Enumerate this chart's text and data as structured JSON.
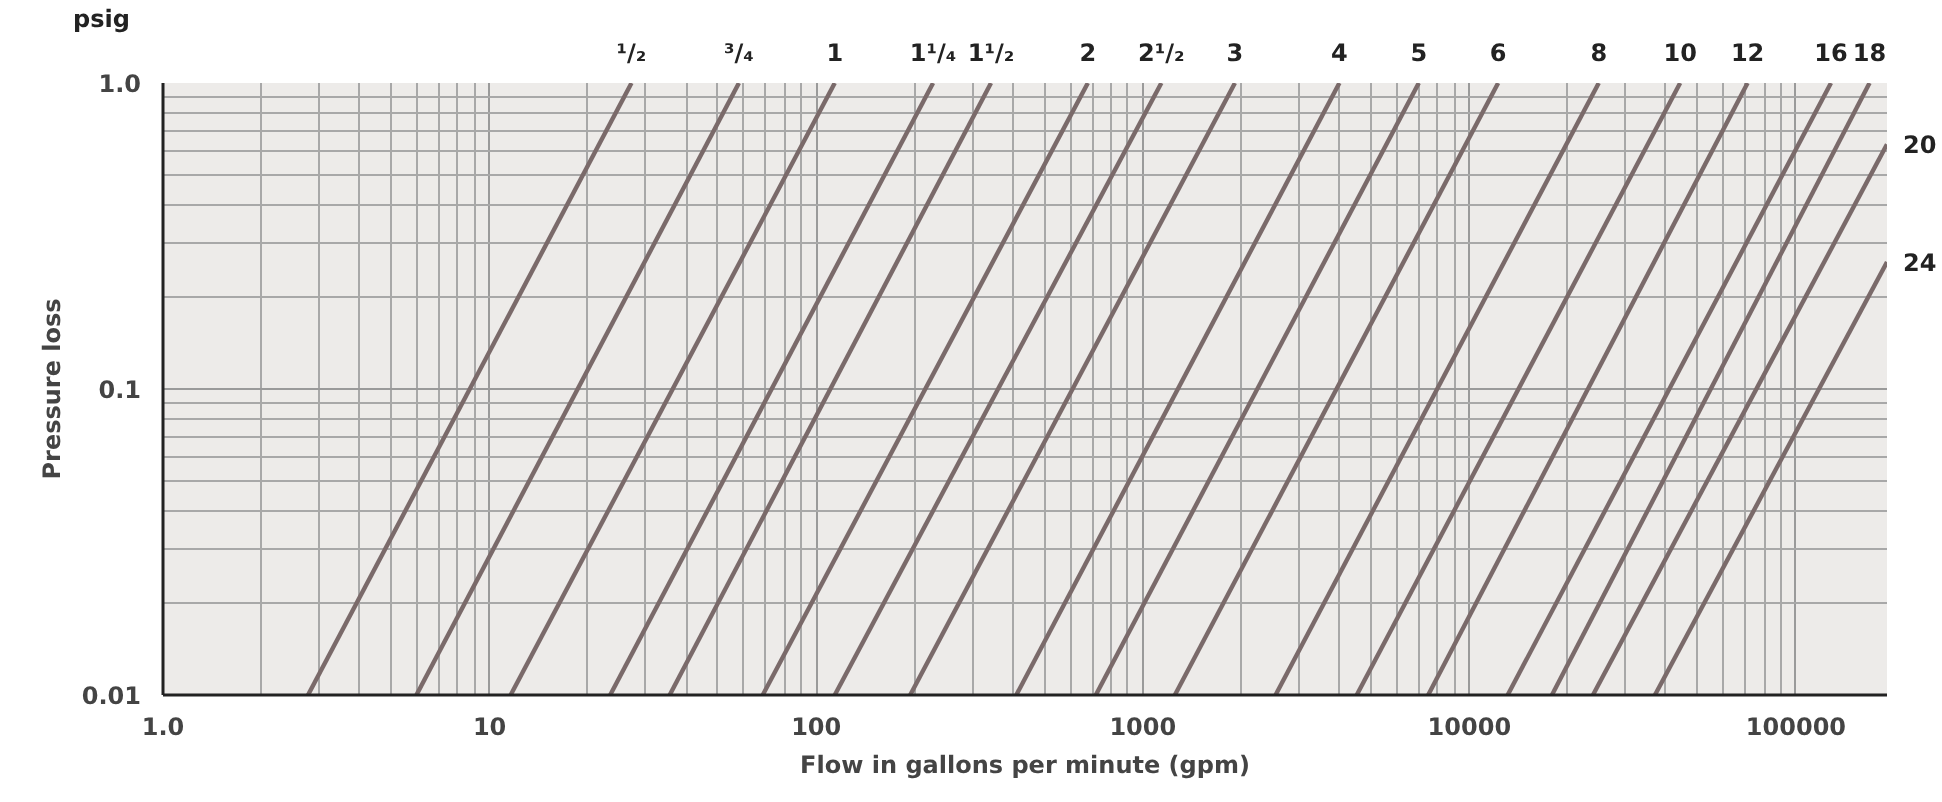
{
  "chart_data": {
    "type": "line",
    "xlabel": "Flow in gallons per minute (gpm)",
    "ylabel": "Pressure loss",
    "annotations": [
      "psig"
    ],
    "log": "xy",
    "grid": true,
    "marker": "none",
    "line_style": "solid",
    "xlim": [
      1,
      190000
    ],
    "ylim": [
      0.01,
      1
    ],
    "xticks": [
      {
        "value": 1,
        "label": "1.0"
      },
      10,
      100,
      1000,
      10000,
      100000
    ],
    "yticks": [
      0.01,
      0.1,
      {
        "value": 1,
        "label": "1.0"
      }
    ],
    "series": [
      {
        "name": "¹/₂",
        "color": "#7a6a6a",
        "x": [
          2.78,
          27.2
        ],
        "values": [
          0.01,
          1
        ]
      },
      {
        "name": "³/₄",
        "color": "#7a6a6a",
        "x": [
          5.97,
          58
        ],
        "values": [
          0.01,
          1
        ]
      },
      {
        "name": "1",
        "color": "#7a6a6a",
        "x": [
          11.6,
          114
        ],
        "values": [
          0.01,
          1
        ]
      },
      {
        "name": "1¹/₄",
        "color": "#7a6a6a",
        "x": [
          23.4,
          228
        ],
        "values": [
          0.01,
          1
        ]
      },
      {
        "name": "1¹/₂",
        "color": "#7a6a6a",
        "x": [
          35.6,
          343
        ],
        "values": [
          0.01,
          1
        ]
      },
      {
        "name": "2",
        "color": "#7a6a6a",
        "x": [
          68.6,
          679
        ],
        "values": [
          0.01,
          1
        ]
      },
      {
        "name": "2¹/₂",
        "color": "#7a6a6a",
        "x": [
          114,
          1140
        ],
        "values": [
          0.01,
          1
        ]
      },
      {
        "name": "3",
        "color": "#7a6a6a",
        "x": [
          194,
          1915
        ],
        "values": [
          0.01,
          1
        ]
      },
      {
        "name": "4",
        "color": "#7a6a6a",
        "x": [
          410,
          4000
        ],
        "values": [
          0.01,
          1
        ]
      },
      {
        "name": "5",
        "color": "#7a6a6a",
        "x": [
          718,
          7000
        ],
        "values": [
          0.01,
          1
        ]
      },
      {
        "name": "6",
        "color": "#7a6a6a",
        "x": [
          1254,
          12250
        ],
        "values": [
          0.01,
          1
        ]
      },
      {
        "name": "8",
        "color": "#7a6a6a",
        "x": [
          2550,
          24900
        ],
        "values": [
          0.01,
          1
        ]
      },
      {
        "name": "10",
        "color": "#7a6a6a",
        "x": [
          4520,
          44200
        ],
        "values": [
          0.01,
          1
        ]
      },
      {
        "name": "12",
        "color": "#7a6a6a",
        "x": [
          7480,
          71100
        ],
        "values": [
          0.01,
          1
        ]
      },
      {
        "name": "16",
        "color": "#7a6a6a",
        "x": [
          13100,
          128000
        ],
        "values": [
          0.01,
          1
        ]
      },
      {
        "name": "18",
        "color": "#7a6a6a",
        "x": [
          17900,
          168000
        ],
        "values": [
          0.01,
          1
        ]
      },
      {
        "name": "20",
        "color": "#7a6a6a",
        "x": [
          23900,
          190000
        ],
        "values": [
          0.01,
          0.63
        ]
      },
      {
        "name": "24",
        "color": "#7a6a6a",
        "x": [
          37000,
          190000
        ],
        "values": [
          0.01,
          0.26
        ]
      }
    ]
  }
}
